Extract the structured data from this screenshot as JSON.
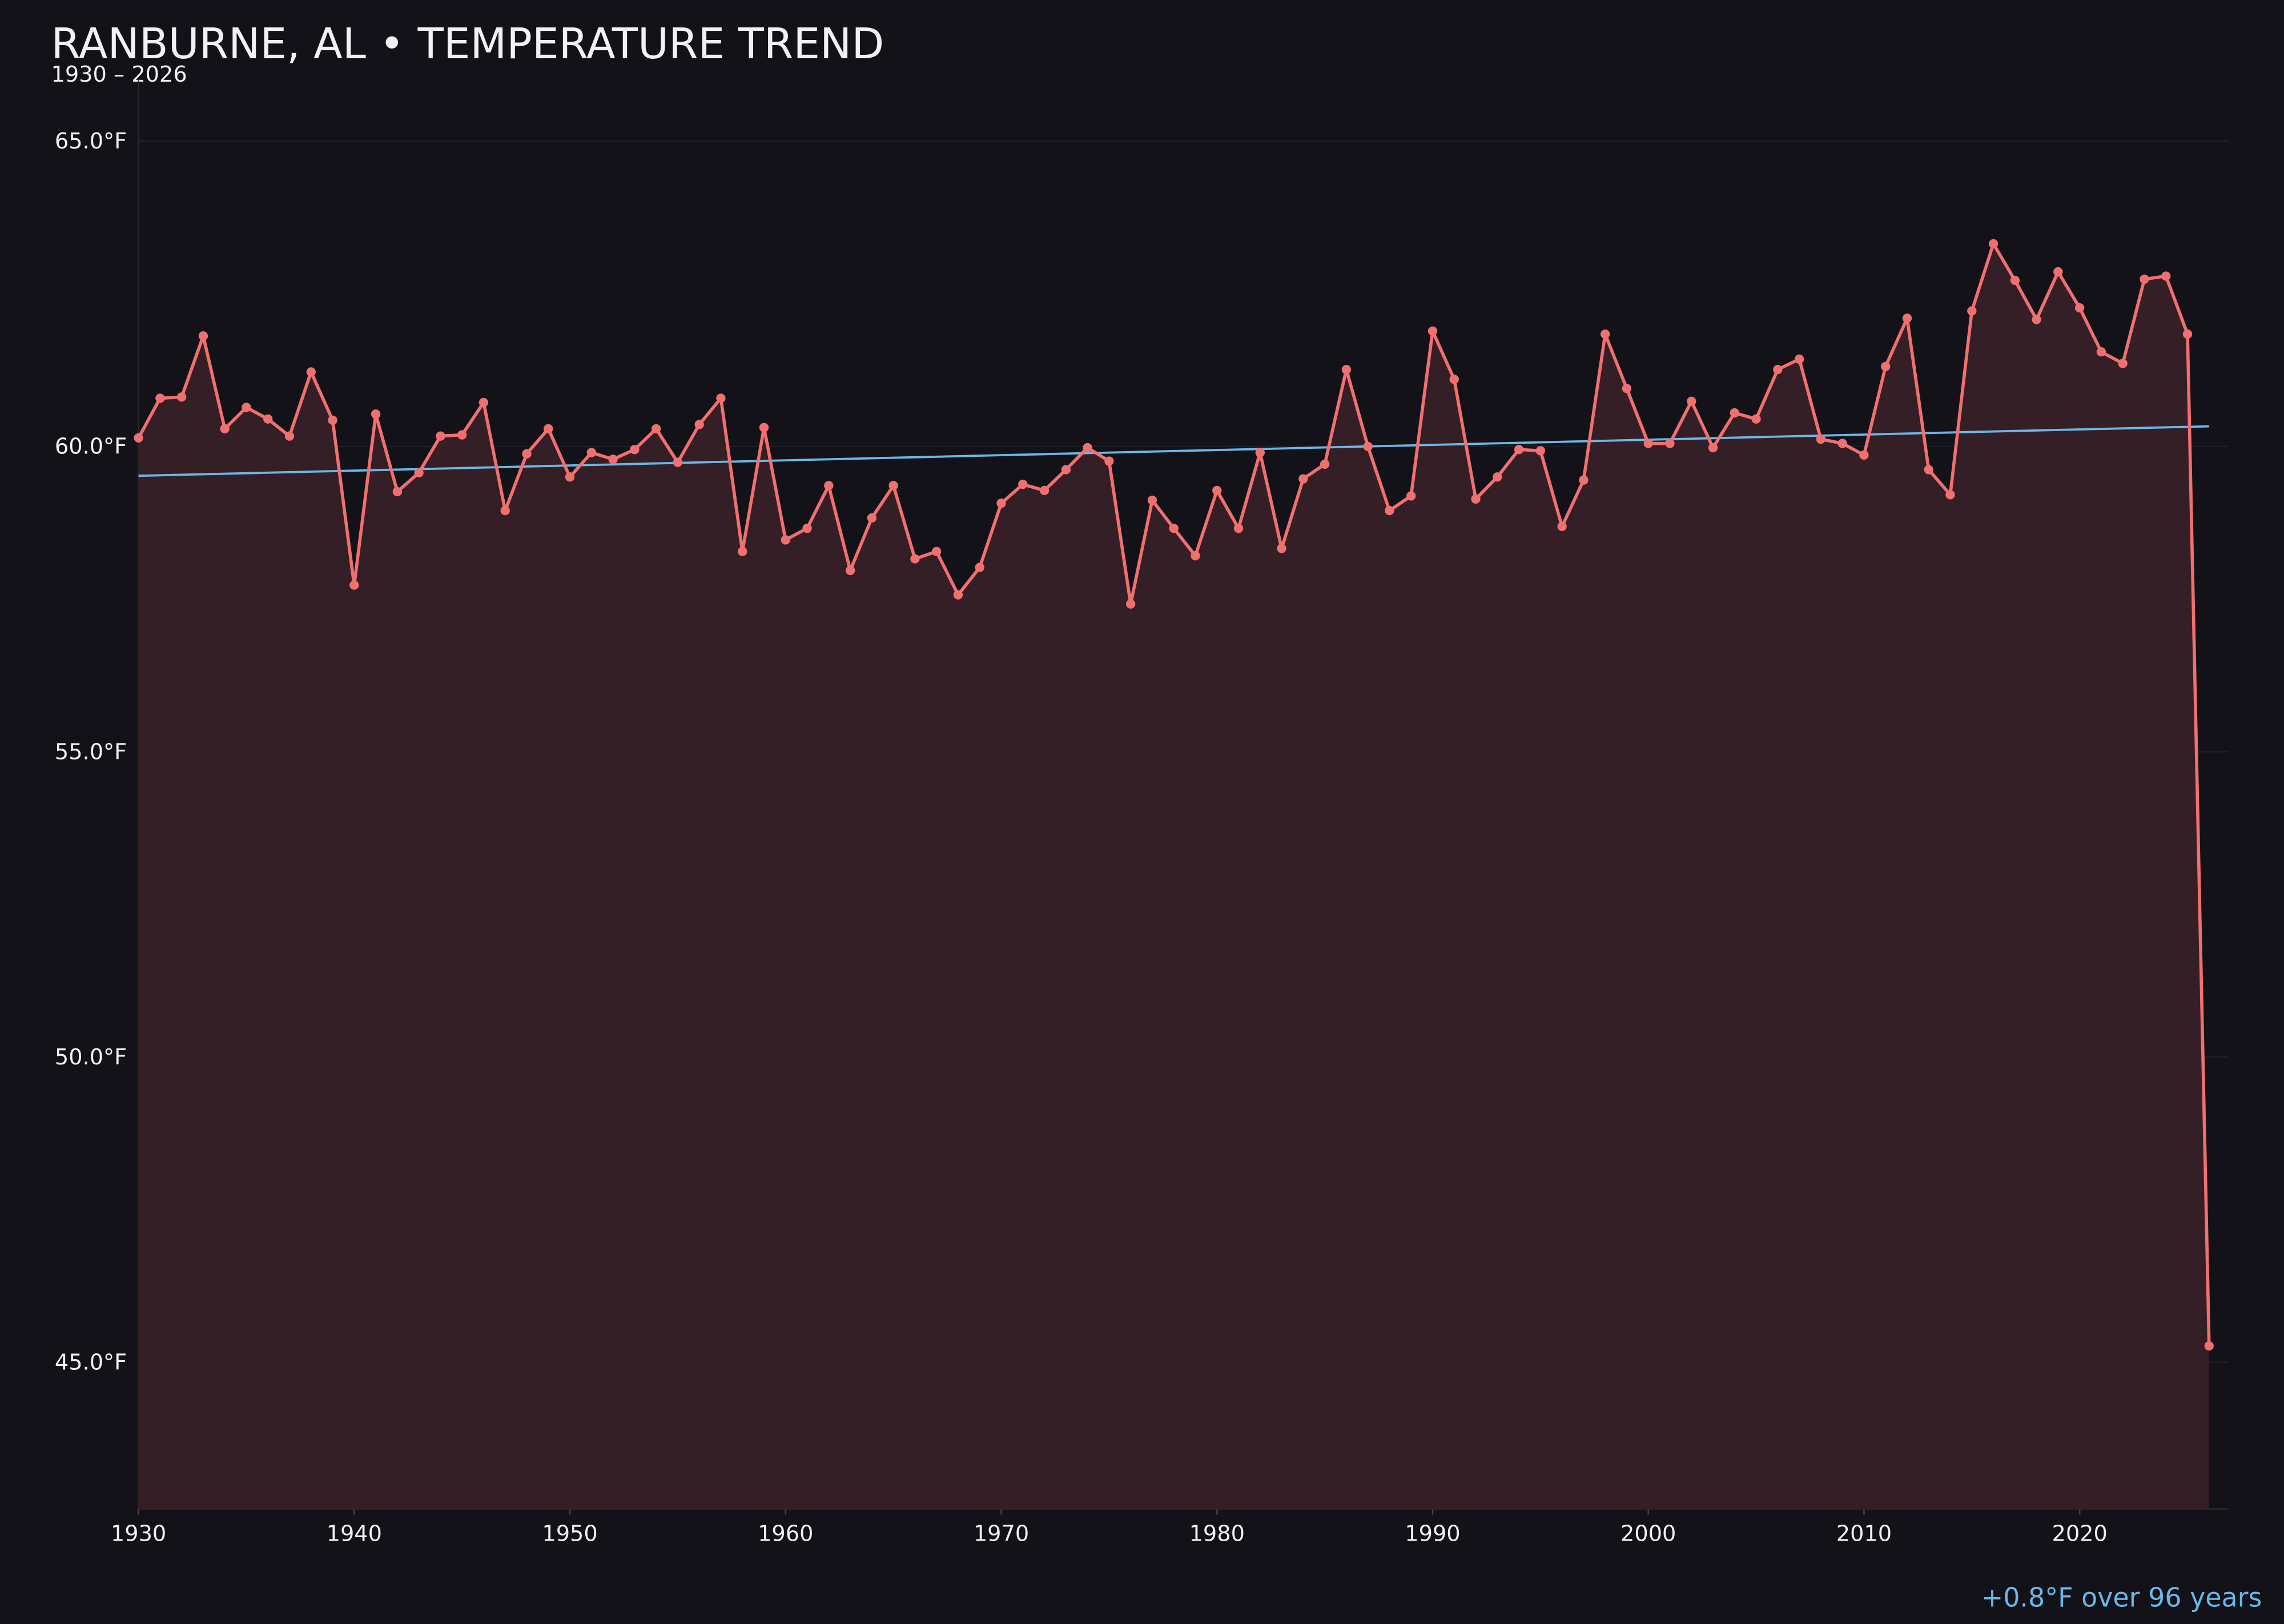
{
  "chart_data": {
    "type": "line",
    "title": "RANBURNE, AL • TEMPERATURE TREND",
    "subtitle": "1930 – 2026",
    "annotation": "+0.8°F over 96 years",
    "x": [
      1930,
      1931,
      1932,
      1933,
      1934,
      1935,
      1936,
      1937,
      1938,
      1939,
      1940,
      1941,
      1942,
      1943,
      1944,
      1945,
      1946,
      1947,
      1948,
      1949,
      1950,
      1951,
      1952,
      1953,
      1954,
      1955,
      1956,
      1957,
      1958,
      1959,
      1960,
      1961,
      1962,
      1963,
      1964,
      1965,
      1966,
      1967,
      1968,
      1969,
      1970,
      1971,
      1972,
      1973,
      1974,
      1975,
      1976,
      1977,
      1978,
      1979,
      1980,
      1981,
      1982,
      1983,
      1984,
      1985,
      1986,
      1987,
      1988,
      1989,
      1990,
      1991,
      1992,
      1993,
      1994,
      1995,
      1996,
      1997,
      1998,
      1999,
      2000,
      2001,
      2002,
      2003,
      2004,
      2005,
      2006,
      2007,
      2008,
      2009,
      2010,
      2011,
      2012,
      2013,
      2014,
      2015,
      2016,
      2017,
      2018,
      2019,
      2020,
      2021,
      2022,
      2023,
      2024,
      2025,
      2026
    ],
    "values": [
      60.14,
      60.79,
      60.81,
      61.81,
      60.29,
      60.64,
      60.45,
      60.17,
      61.22,
      60.43,
      57.73,
      60.53,
      59.26,
      59.57,
      60.17,
      60.19,
      60.72,
      58.95,
      59.88,
      60.29,
      59.5,
      59.9,
      59.79,
      59.95,
      60.29,
      59.74,
      60.36,
      60.79,
      58.28,
      60.31,
      58.47,
      58.66,
      59.36,
      57.97,
      58.83,
      59.36,
      58.16,
      58.28,
      57.57,
      58.02,
      59.07,
      59.38,
      59.28,
      59.62,
      59.98,
      59.76,
      57.42,
      59.12,
      58.66,
      58.21,
      59.28,
      58.66,
      59.9,
      58.33,
      59.47,
      59.71,
      61.26,
      60.0,
      58.95,
      59.19,
      61.89,
      61.1,
      59.14,
      59.5,
      59.95,
      59.93,
      58.69,
      59.45,
      61.84,
      60.95,
      60.05,
      60.05,
      60.74,
      59.98,
      60.55,
      60.45,
      61.26,
      61.43,
      60.12,
      60.05,
      59.86,
      61.31,
      62.1,
      59.62,
      59.21,
      62.22,
      63.32,
      62.72,
      62.08,
      62.86,
      62.27,
      61.55,
      61.36,
      62.74,
      62.79,
      61.84,
      45.27
    ],
    "color": "#f07070",
    "fill_color": "#351f26",
    "trend": {
      "x": [
        1930,
        2026
      ],
      "values": [
        59.52,
        60.33
      ],
      "color": "#6ab8e8"
    },
    "xlim": [
      1930,
      2026.9
    ],
    "ylim": [
      42.6,
      66.0
    ],
    "xticks": [
      1930,
      1940,
      1950,
      1960,
      1970,
      1980,
      1990,
      2000,
      2010,
      2020
    ],
    "yticks": [
      {
        "value": 45,
        "label": "45.0°F"
      },
      {
        "value": 50,
        "label": "50.0°F"
      },
      {
        "value": 55,
        "label": "55.0°F"
      },
      {
        "value": 60,
        "label": "60.0°F"
      },
      {
        "value": 65,
        "label": "65.0°F"
      }
    ],
    "grid": true
  }
}
